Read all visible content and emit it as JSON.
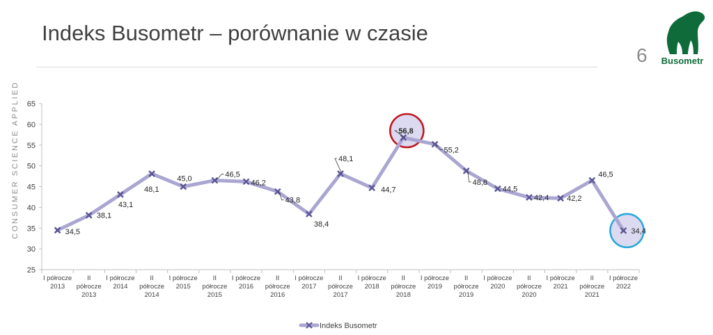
{
  "slide": {
    "title": "Indeks Busometr – porównanie w czasie",
    "page_number": "6",
    "side_text": "CONSUMER SCIENCE APPLIED",
    "logo_text": "Busometr",
    "colors": {
      "logo_green": "#0f6b3a",
      "line": "#aaa6d2",
      "marker": "#5b5694"
    }
  },
  "chart_data": {
    "type": "line",
    "title": "",
    "xlabel": "",
    "ylabel": "",
    "ylim": [
      25,
      65
    ],
    "yticks": [
      25,
      30,
      35,
      40,
      45,
      50,
      55,
      60,
      65
    ],
    "categories": [
      [
        "I półrocze",
        "2013"
      ],
      [
        "II",
        "półrocze",
        "2013"
      ],
      [
        "I półrocze",
        "2014"
      ],
      [
        "II",
        "półrocze",
        "2014"
      ],
      [
        "I półrocze",
        "2015"
      ],
      [
        "II",
        "półrocze",
        "2015"
      ],
      [
        "I półrocze",
        "2016"
      ],
      [
        "II",
        "półrocze",
        "2016"
      ],
      [
        "I półrocze",
        "2017"
      ],
      [
        "II",
        "półrocze",
        "2017"
      ],
      [
        "I półrocze",
        "2018"
      ],
      [
        "II",
        "półrocze",
        "2018"
      ],
      [
        "I półrocze",
        "2019"
      ],
      [
        "II",
        "półrocze",
        "2019"
      ],
      [
        "I półrocze",
        "2020"
      ],
      [
        "II",
        "półrocze",
        "2020"
      ],
      [
        "I półrocze",
        "2021"
      ],
      [
        "II",
        "półrocze",
        "2021"
      ],
      [
        "I półrocze",
        "2022"
      ]
    ],
    "series": [
      {
        "name": "Indeks Busometr",
        "values": [
          34.5,
          38.1,
          43.1,
          48.1,
          45.0,
          46.5,
          46.2,
          43.8,
          38.4,
          48.1,
          44.7,
          56.8,
          55.2,
          48.8,
          44.5,
          42.4,
          42.2,
          46.5,
          34.4
        ],
        "labels": [
          "34,5",
          "38,1",
          "43,1",
          "48,1",
          "45,0",
          "46,5",
          "46,2",
          "43,8",
          "38,4",
          "48,1",
          "44,7",
          "56,8",
          "55,2",
          "48,8",
          "44,5",
          "42,4",
          "42,2",
          "46,5",
          "34,4"
        ]
      }
    ],
    "highlights": [
      {
        "index": 11,
        "color": "#c0161d"
      },
      {
        "index": 18,
        "color": "#29a8dc"
      }
    ],
    "legend_position": "bottom",
    "grid": false
  }
}
